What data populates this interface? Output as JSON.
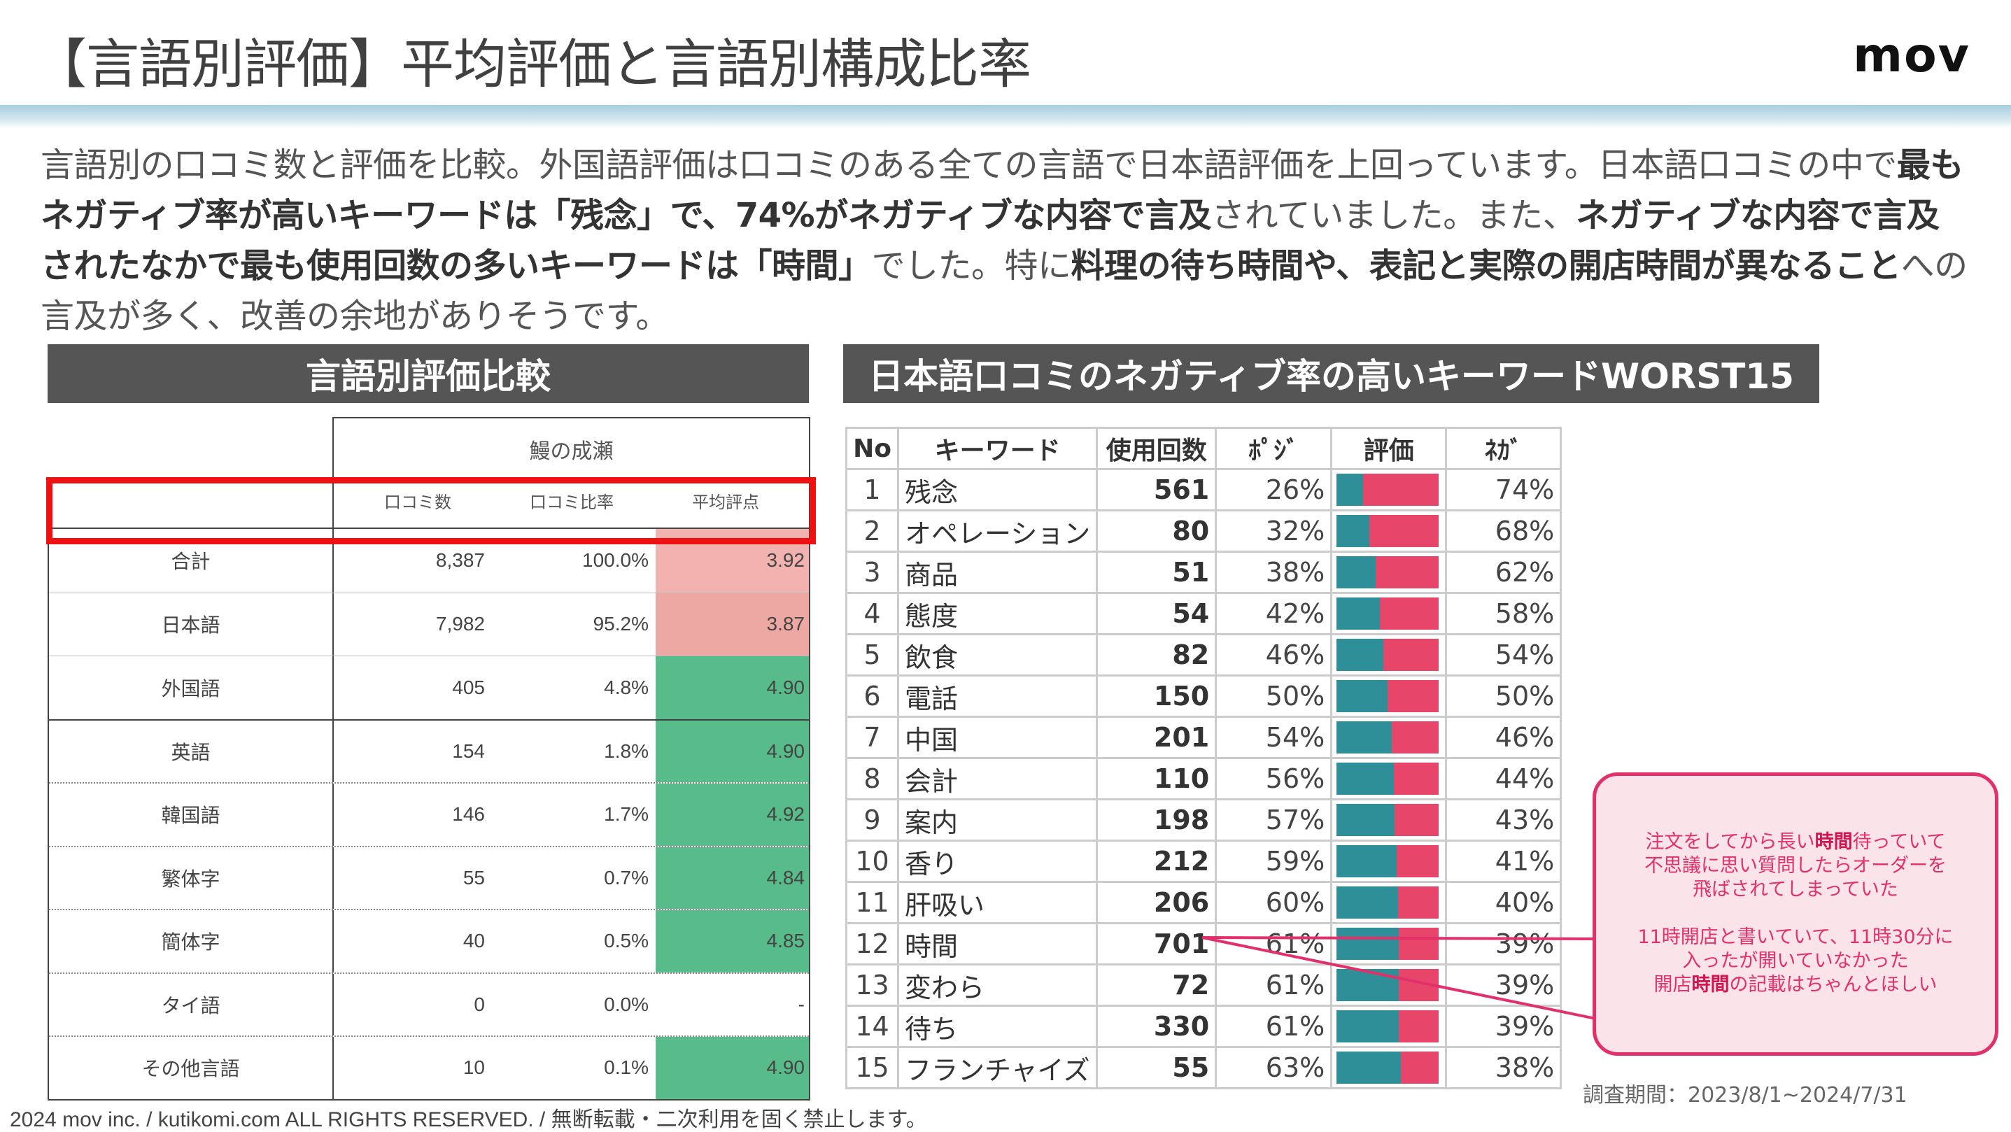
{
  "title": "【言語別評価】平均評価と言語別構成比率",
  "logo": "mov",
  "summary": {
    "p1": "言語別の口コミ数と評価を比較。外国語評価は口コミのある全ての言語で日本語評価を上回っています。日本語口コミの中で",
    "b1": "最もネガティブ率が高いキーワードは「残念」で、74%がネガティブな内容で言及",
    "p2": "されていました。また、",
    "b2": "ネガティブな内容で言及されたなかで最も使用回数の多いキーワードは「時間」",
    "p3": "でした。特に",
    "b3": "料理の待ち時間や、表記と実際の開店時間が異なること",
    "p4": "への言及が多く、改善の余地がありそうです。"
  },
  "left_section": {
    "header": "言語別評価比較",
    "group_label": "鰻の成瀬",
    "columns": [
      "口コミ数",
      "口コミ比率",
      "平均評点"
    ],
    "rows": [
      {
        "lang": "合計",
        "count": "8,387",
        "ratio": "100.0%",
        "avg": "3.92",
        "color": "#f2b3b0"
      },
      {
        "lang": "日本語",
        "count": "7,982",
        "ratio": "95.2%",
        "avg": "3.87",
        "color": "#eda8a4"
      },
      {
        "lang": "外国語",
        "count": "405",
        "ratio": "4.8%",
        "avg": "4.90",
        "color": "#57bb8a"
      },
      {
        "lang": "英語",
        "count": "154",
        "ratio": "1.8%",
        "avg": "4.90",
        "color": "#57bb8a"
      },
      {
        "lang": "韓国語",
        "count": "146",
        "ratio": "1.7%",
        "avg": "4.92",
        "color": "#57bb8a"
      },
      {
        "lang": "繁体字",
        "count": "55",
        "ratio": "0.7%",
        "avg": "4.84",
        "color": "#57bb8a"
      },
      {
        "lang": "簡体字",
        "count": "40",
        "ratio": "0.5%",
        "avg": "4.85",
        "color": "#57bb8a"
      },
      {
        "lang": "タイ語",
        "count": "0",
        "ratio": "0.0%",
        "avg": "-",
        "color": "#ffffff"
      },
      {
        "lang": "その他言語",
        "count": "10",
        "ratio": "0.1%",
        "avg": "4.90",
        "color": "#57bb8a"
      }
    ]
  },
  "right_section": {
    "header": "日本語口コミのネガティブ率の高いキーワードWORST15",
    "columns": [
      "No",
      "キーワード",
      "使用回数",
      "ﾎﾟｼﾞ",
      "評価",
      "ﾈｶﾞ"
    ],
    "rows": [
      {
        "no": "1",
        "keyword": "残念",
        "count": "561",
        "pos": "26%",
        "neg": "74%",
        "pos_value": 0.26
      },
      {
        "no": "2",
        "keyword": "オペレーション",
        "count": "80",
        "pos": "32%",
        "neg": "68%",
        "pos_value": 0.32
      },
      {
        "no": "3",
        "keyword": "商品",
        "count": "51",
        "pos": "38%",
        "neg": "62%",
        "pos_value": 0.38
      },
      {
        "no": "4",
        "keyword": "態度",
        "count": "54",
        "pos": "42%",
        "neg": "58%",
        "pos_value": 0.42
      },
      {
        "no": "5",
        "keyword": "飲食",
        "count": "82",
        "pos": "46%",
        "neg": "54%",
        "pos_value": 0.46
      },
      {
        "no": "6",
        "keyword": "電話",
        "count": "150",
        "pos": "50%",
        "neg": "50%",
        "pos_value": 0.5
      },
      {
        "no": "7",
        "keyword": "中国",
        "count": "201",
        "pos": "54%",
        "neg": "46%",
        "pos_value": 0.54
      },
      {
        "no": "8",
        "keyword": "会計",
        "count": "110",
        "pos": "56%",
        "neg": "44%",
        "pos_value": 0.56
      },
      {
        "no": "9",
        "keyword": "案内",
        "count": "198",
        "pos": "57%",
        "neg": "43%",
        "pos_value": 0.57
      },
      {
        "no": "10",
        "keyword": "香り",
        "count": "212",
        "pos": "59%",
        "neg": "41%",
        "pos_value": 0.59
      },
      {
        "no": "11",
        "keyword": "肝吸い",
        "count": "206",
        "pos": "60%",
        "neg": "40%",
        "pos_value": 0.6
      },
      {
        "no": "12",
        "keyword": "時間",
        "count": "701",
        "pos": "61%",
        "neg": "39%",
        "pos_value": 0.61
      },
      {
        "no": "13",
        "keyword": "変わら",
        "count": "72",
        "pos": "61%",
        "neg": "39%",
        "pos_value": 0.61
      },
      {
        "no": "14",
        "keyword": "待ち",
        "count": "330",
        "pos": "61%",
        "neg": "39%",
        "pos_value": 0.61
      },
      {
        "no": "15",
        "keyword": "フランチャイズ",
        "count": "55",
        "pos": "63%",
        "neg": "38%",
        "pos_value": 0.63
      }
    ],
    "bar_colors": {
      "positive": "#2e8f98",
      "negative": "#e8456a"
    }
  },
  "callout": {
    "c1a": "注文をしてから長い",
    "c1b": "時間",
    "c1c": "待っていて",
    "c2": "不思議に思い質問したらオーダーを",
    "c3": "飛ばされてしまっていた",
    "c4": "11時開店と書いていて、11時30分に",
    "c5": "入ったが開いていなかった",
    "c6a": "開店",
    "c6b": "時間",
    "c6c": "の記載はちゃんとほしい"
  },
  "period": "調査期間：2023/8/1~2024/7/31",
  "footer": "2024 mov inc. / kutikomi.com ALL RIGHTS RESERVED. / 無断転載・二次利用を固く禁止します。"
}
